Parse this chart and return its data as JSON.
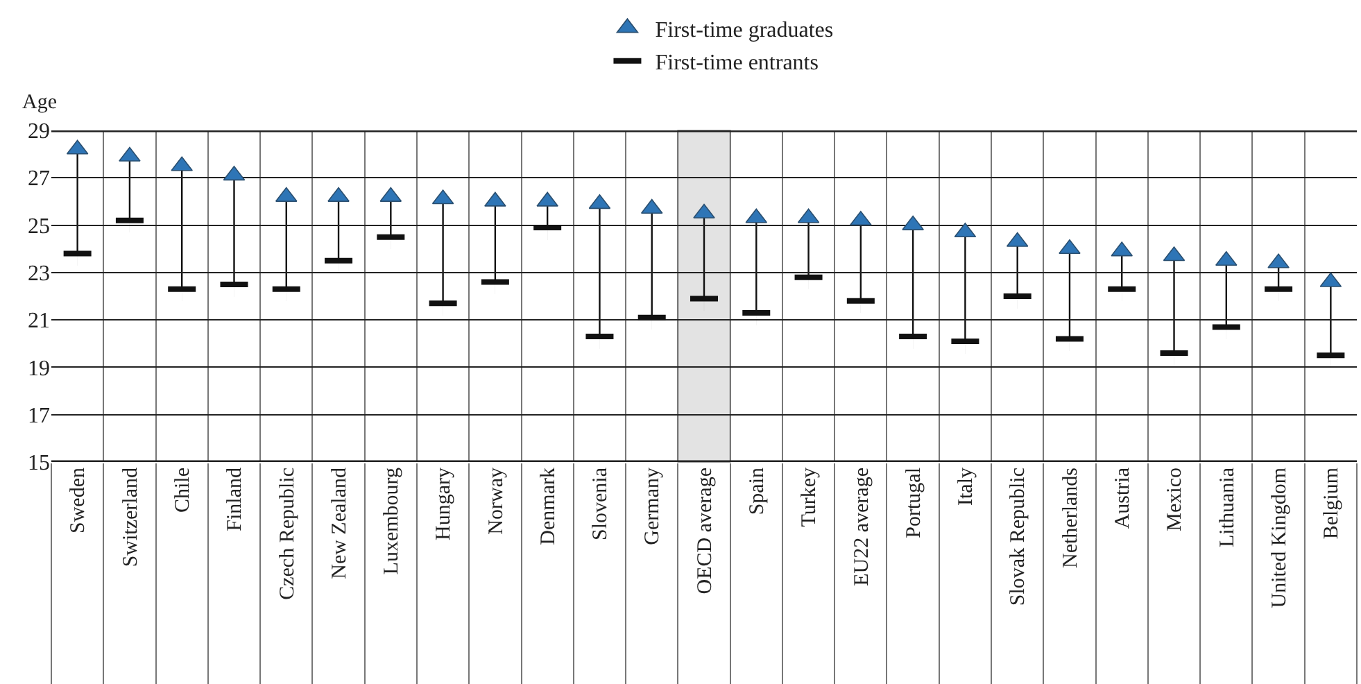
{
  "chart_data": {
    "type": "scatter",
    "ylabel": "Age",
    "categories": [
      "Sweden",
      "Switzerland",
      "Chile",
      "Finland",
      "Czech Republic",
      "New Zealand",
      "Luxembourg",
      "Hungary",
      "Norway",
      "Denmark",
      "Slovenia",
      "Germany",
      "OECD average",
      "Spain",
      "Turkey",
      "EU22 average",
      "Portugal",
      "Italy",
      "Slovak Republic",
      "Netherlands",
      "Austria",
      "Mexico",
      "Lithuania",
      "United Kingdom",
      "Belgium"
    ],
    "series": [
      {
        "name": "First-time graduates",
        "color": "#2e75b6",
        "marker": "triangle",
        "values": [
          28.2,
          27.9,
          27.5,
          27.1,
          26.2,
          26.2,
          26.2,
          26.1,
          26.0,
          26.0,
          25.9,
          25.7,
          25.5,
          25.3,
          25.3,
          25.2,
          25.0,
          24.7,
          24.3,
          24.0,
          23.9,
          23.7,
          23.5,
          23.4,
          22.6
        ]
      },
      {
        "name": "First-time entrants",
        "color": "#111111",
        "values": [
          23.8,
          25.2,
          22.3,
          22.5,
          22.3,
          23.5,
          24.5,
          21.7,
          22.6,
          24.9,
          20.3,
          21.1,
          21.9,
          21.3,
          22.8,
          21.8,
          20.3,
          20.1,
          22.0,
          20.2,
          22.3,
          19.6,
          20.7,
          22.3,
          19.5
        ]
      }
    ],
    "ylim": [
      15,
      29
    ],
    "yticks": [
      15,
      17,
      19,
      21,
      23,
      25,
      27,
      29
    ],
    "grid": true,
    "legend": "top",
    "bands": [
      {
        "axis": "x",
        "from": "OECD average",
        "to": "OECD average",
        "color": "#e3e3e3"
      }
    ]
  }
}
